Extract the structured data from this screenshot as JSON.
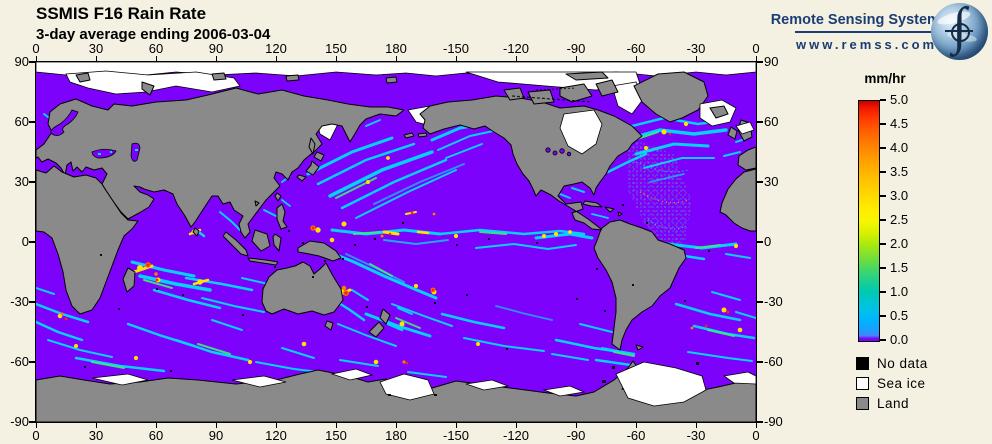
{
  "header": {
    "title": "SSMIS F16 Rain Rate",
    "subtitle": "3-day average ending 2006-03-04"
  },
  "logo": {
    "name": "Remote Sensing Systems",
    "url": "www.remss.com",
    "globe_icon": "earth-globe-with-integral-icon"
  },
  "map": {
    "projection": "equirectangular-global",
    "lon_labels": [
      "0",
      "30",
      "60",
      "90",
      "120",
      "150",
      "180",
      "-150",
      "-120",
      "-90",
      "-60",
      "-30",
      "0"
    ],
    "lat_labels": [
      "90",
      "60",
      "30",
      "0",
      "-30",
      "-60",
      "-90"
    ]
  },
  "colorbar": {
    "title": "mm/hr",
    "ticks": [
      "5.0",
      "4.5",
      "4.0",
      "3.5",
      "3.0",
      "2.5",
      "2.0",
      "1.5",
      "1.0",
      "0.5",
      "0.0"
    ],
    "min": 0.0,
    "max": 5.0
  },
  "legend": {
    "items": [
      {
        "label": "No data",
        "color": "#000000"
      },
      {
        "label": "Sea ice",
        "color": "#ffffff"
      },
      {
        "label": "Land",
        "color": "#8a8a8a"
      }
    ]
  },
  "colors": {
    "background": "#f5f1e2",
    "ocean_zero_rain": "#7c02fc",
    "land": "#8a8a8a",
    "sea_ice": "#ffffff",
    "no_data": "#000000",
    "rain_low_cyan": "#00dcff",
    "rain_mid_green": "#3af07a",
    "rain_high_yellow": "#ffe400",
    "rain_extreme_red": "#ff2600",
    "logo_navy": "#1b3d73"
  }
}
